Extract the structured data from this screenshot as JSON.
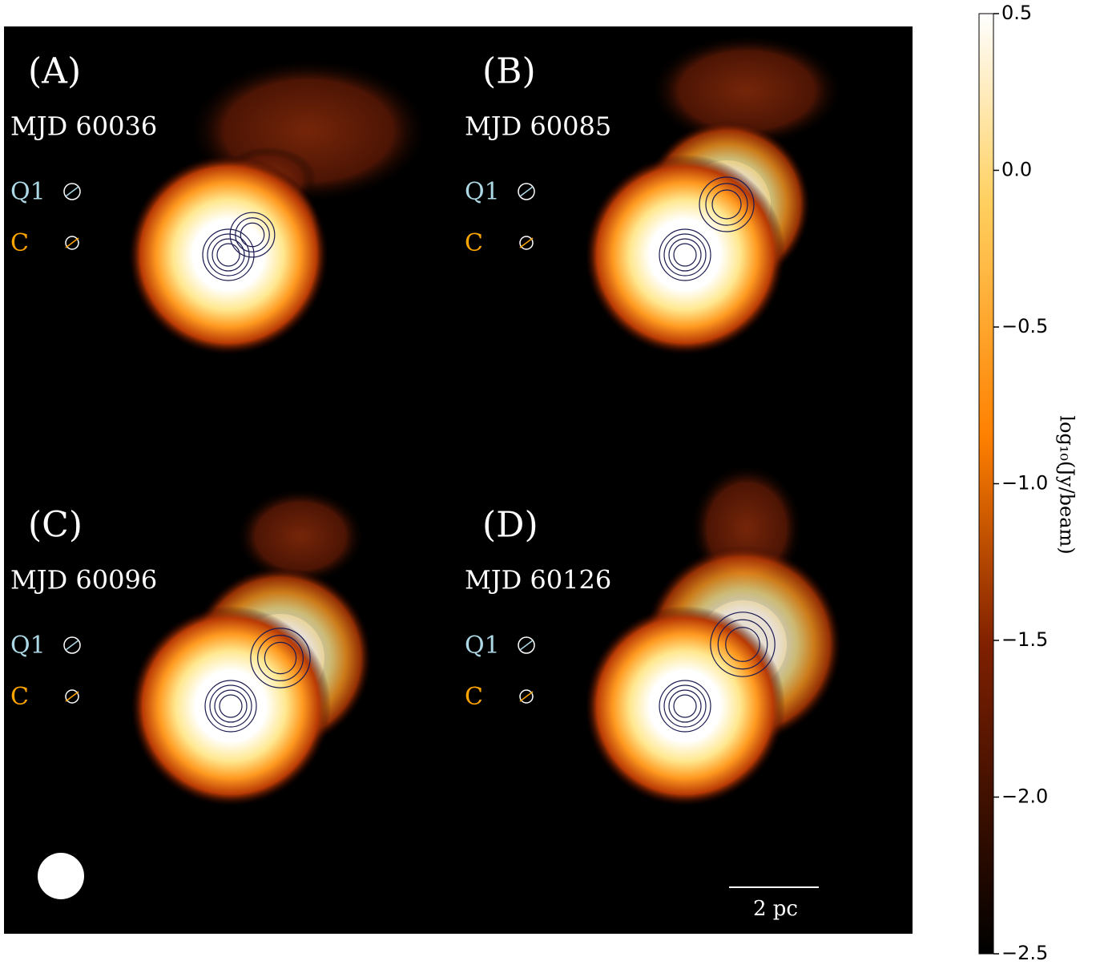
{
  "chart_data": {
    "type": "image",
    "panels": [
      {
        "label": "(A)",
        "epoch": "MJD 60036",
        "components": [
          {
            "name": "Q1",
            "color": "#add8e6"
          },
          {
            "name": "C",
            "color": "#ffa500"
          }
        ]
      },
      {
        "label": "(B)",
        "epoch": "MJD 60085",
        "components": [
          {
            "name": "Q1",
            "color": "#add8e6"
          },
          {
            "name": "C",
            "color": "#ffa500"
          }
        ]
      },
      {
        "label": "(C)",
        "epoch": "MJD 60096",
        "components": [
          {
            "name": "Q1",
            "color": "#add8e6"
          },
          {
            "name": "C",
            "color": "#ffa500"
          }
        ]
      },
      {
        "label": "(D)",
        "epoch": "MJD 60126",
        "components": [
          {
            "name": "Q1",
            "color": "#add8e6"
          },
          {
            "name": "C",
            "color": "#ffa500"
          }
        ]
      }
    ],
    "scale_bar": "2 pc",
    "colorbar": {
      "label": "log₁₀(Jy/beam)",
      "colormap": "afmhot",
      "ylim": [
        -2.5,
        0.5
      ],
      "yticks": [
        {
          "value": -2.5,
          "label": "−2.5"
        },
        {
          "value": -2.0,
          "label": "−2.0"
        },
        {
          "value": -1.5,
          "label": "−1.5"
        },
        {
          "value": -1.0,
          "label": "−1.0"
        },
        {
          "value": -0.5,
          "label": "−0.5"
        },
        {
          "value": 0.0,
          "label": "0.0"
        },
        {
          "value": 0.5,
          "label": "0.5"
        }
      ]
    }
  }
}
